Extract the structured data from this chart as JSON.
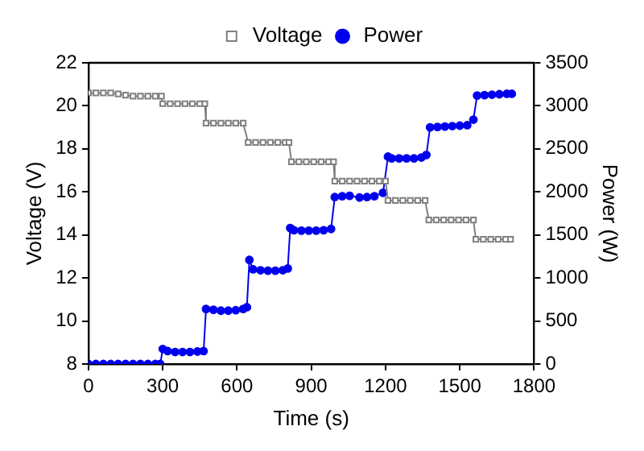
{
  "chart_data": {
    "type": "line",
    "xlabel": "Time (s)",
    "ylabel": "Voltage (V)",
    "y2label": "Power (W)",
    "xlim": [
      0,
      1800
    ],
    "xticks": [
      0,
      300,
      600,
      900,
      1200,
      1500,
      1800
    ],
    "ylim": [
      8,
      22
    ],
    "yticks": [
      8,
      10,
      12,
      14,
      16,
      18,
      20,
      22
    ],
    "y2lim": [
      0,
      3500
    ],
    "y2ticks": [
      0,
      500,
      1000,
      1500,
      2000,
      2500,
      3000,
      3500
    ],
    "grid": false,
    "legend": "top",
    "line_style": "solid",
    "series": [
      {
        "name": "Voltage",
        "color": "#808080",
        "marker": "square",
        "x": [
          0,
          30,
          60,
          90,
          120,
          150,
          180,
          210,
          240,
          270,
          295,
          300,
          330,
          360,
          390,
          420,
          450,
          470,
          475,
          505,
          535,
          565,
          595,
          625,
          645,
          675,
          705,
          735,
          765,
          795,
          810,
          820,
          850,
          880,
          910,
          940,
          970,
          990,
          995,
          1025,
          1055,
          1085,
          1115,
          1145,
          1175,
          1200,
          1210,
          1240,
          1270,
          1300,
          1330,
          1360,
          1375,
          1405,
          1435,
          1465,
          1495,
          1525,
          1555,
          1565,
          1595,
          1625,
          1655,
          1685,
          1705
        ],
        "values": [
          20.6,
          20.6,
          20.6,
          20.6,
          20.55,
          20.5,
          20.45,
          20.45,
          20.45,
          20.45,
          20.45,
          20.1,
          20.1,
          20.1,
          20.1,
          20.1,
          20.1,
          20.1,
          19.2,
          19.2,
          19.2,
          19.2,
          19.2,
          19.2,
          18.3,
          18.3,
          18.3,
          18.3,
          18.3,
          18.3,
          18.3,
          17.4,
          17.4,
          17.4,
          17.4,
          17.4,
          17.4,
          17.4,
          16.5,
          16.5,
          16.5,
          16.5,
          16.5,
          16.5,
          16.5,
          16.5,
          15.6,
          15.6,
          15.6,
          15.6,
          15.6,
          15.6,
          14.7,
          14.7,
          14.7,
          14.7,
          14.7,
          14.7,
          14.7,
          13.8,
          13.8,
          13.8,
          13.8,
          13.8,
          13.8
        ]
      },
      {
        "name": "Power",
        "color": "#0000ee",
        "marker": "circle",
        "axis": "y2",
        "x": [
          0,
          30,
          60,
          90,
          120,
          150,
          180,
          210,
          240,
          270,
          290,
          300,
          320,
          350,
          380,
          410,
          440,
          465,
          475,
          505,
          535,
          565,
          595,
          625,
          640,
          650,
          665,
          695,
          725,
          755,
          785,
          805,
          815,
          830,
          860,
          890,
          920,
          950,
          980,
          995,
          1025,
          1055,
          1095,
          1125,
          1155,
          1190,
          1210,
          1225,
          1255,
          1285,
          1315,
          1345,
          1365,
          1380,
          1410,
          1440,
          1470,
          1500,
          1530,
          1555,
          1570,
          1600,
          1630,
          1660,
          1690,
          1710
        ],
        "values": [
          0,
          0,
          0,
          0,
          0,
          0,
          0,
          0,
          0,
          0,
          0,
          175,
          150,
          140,
          140,
          140,
          145,
          150,
          640,
          630,
          620,
          620,
          625,
          640,
          660,
          1210,
          1100,
          1090,
          1085,
          1085,
          1090,
          1110,
          1580,
          1555,
          1550,
          1550,
          1550,
          1555,
          1570,
          1940,
          1950,
          1955,
          1935,
          1940,
          1950,
          1990,
          2410,
          2390,
          2390,
          2390,
          2390,
          2400,
          2430,
          2750,
          2755,
          2760,
          2765,
          2770,
          2775,
          2840,
          3120,
          3125,
          3130,
          3135,
          3140,
          3140
        ]
      }
    ]
  }
}
